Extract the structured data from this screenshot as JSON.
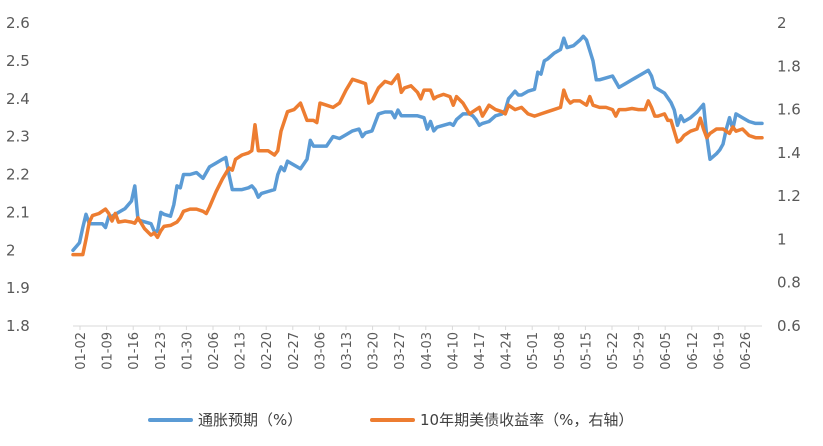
{
  "chart_data": {
    "type": "line",
    "title": "",
    "xlabel": "",
    "ylabel": "",
    "x_tick_labels": [
      "01-02",
      "01-09",
      "01-16",
      "01-23",
      "01-30",
      "02-06",
      "02-13",
      "02-20",
      "02-27",
      "03-06",
      "03-13",
      "03-20",
      "03-27",
      "04-03",
      "04-10",
      "04-17",
      "04-24",
      "05-01",
      "05-08",
      "05-15",
      "05-22",
      "05-29",
      "06-05",
      "06-12",
      "06-19",
      "06-26"
    ],
    "y_left": {
      "min": 1.8,
      "max": 2.6,
      "ticks": [
        "1.8",
        "1.9",
        "2",
        "2.1",
        "2.2",
        "2.3",
        "2.4",
        "2.5",
        "2.6"
      ]
    },
    "y_right": {
      "min": 0.6,
      "max": 2.0,
      "ticks": [
        "0.6",
        "0.8",
        "1",
        "1.2",
        "1.4",
        "1.6",
        "1.8",
        "2"
      ]
    },
    "legend_position": "bottom",
    "series": [
      {
        "name": "通胀预期（%）",
        "axis": "left",
        "color": "#5B9BD5",
        "points": [
          [
            0,
            2.0
          ],
          [
            0.5,
            2.01
          ],
          [
            1,
            2.02
          ],
          [
            1.5,
            2.06
          ],
          [
            2,
            2.095
          ],
          [
            2.5,
            2.07
          ],
          [
            3,
            2.07
          ],
          [
            3.5,
            2.07
          ],
          [
            4,
            2.07
          ],
          [
            4.5,
            2.07
          ],
          [
            5,
            2.06
          ],
          [
            5.5,
            2.09
          ],
          [
            6,
            2.09
          ],
          [
            7,
            2.1
          ],
          [
            8,
            2.11
          ],
          [
            9,
            2.13
          ],
          [
            9.5,
            2.17
          ],
          [
            10,
            2.08
          ],
          [
            11,
            2.075
          ],
          [
            12,
            2.07
          ],
          [
            12.5,
            2.05
          ],
          [
            13,
            2.05
          ],
          [
            13.5,
            2.1
          ],
          [
            14,
            2.095
          ],
          [
            15,
            2.09
          ],
          [
            15.5,
            2.12
          ],
          [
            16,
            2.17
          ],
          [
            16.5,
            2.165
          ],
          [
            17,
            2.2
          ],
          [
            18,
            2.2
          ],
          [
            19,
            2.205
          ],
          [
            20,
            2.19
          ],
          [
            21,
            2.22
          ],
          [
            22,
            2.23
          ],
          [
            23,
            2.24
          ],
          [
            23.5,
            2.245
          ],
          [
            24,
            2.2
          ],
          [
            24.5,
            2.16
          ],
          [
            25,
            2.16
          ],
          [
            26,
            2.16
          ],
          [
            27,
            2.165
          ],
          [
            27.5,
            2.17
          ],
          [
            28,
            2.16
          ],
          [
            28.5,
            2.14
          ],
          [
            29,
            2.15
          ],
          [
            30,
            2.155
          ],
          [
            31,
            2.16
          ],
          [
            31.5,
            2.2
          ],
          [
            32,
            2.22
          ],
          [
            32.5,
            2.21
          ],
          [
            33,
            2.235
          ],
          [
            34,
            2.225
          ],
          [
            35,
            2.215
          ],
          [
            36,
            2.24
          ],
          [
            36.5,
            2.29
          ],
          [
            37,
            2.275
          ],
          [
            38,
            2.275
          ],
          [
            39,
            2.275
          ],
          [
            40,
            2.3
          ],
          [
            41,
            2.295
          ],
          [
            42,
            2.305
          ],
          [
            43,
            2.315
          ],
          [
            44,
            2.32
          ],
          [
            44.5,
            2.3
          ],
          [
            45,
            2.31
          ],
          [
            46,
            2.315
          ],
          [
            47,
            2.36
          ],
          [
            48,
            2.365
          ],
          [
            49,
            2.365
          ],
          [
            49.5,
            2.35
          ],
          [
            50,
            2.37
          ],
          [
            50.5,
            2.355
          ],
          [
            51,
            2.355
          ],
          [
            52,
            2.355
          ],
          [
            53,
            2.355
          ],
          [
            54,
            2.35
          ],
          [
            54.5,
            2.32
          ],
          [
            55,
            2.34
          ],
          [
            55.5,
            2.315
          ],
          [
            56,
            2.325
          ],
          [
            57,
            2.33
          ],
          [
            58,
            2.335
          ],
          [
            58.5,
            2.33
          ],
          [
            59,
            2.345
          ],
          [
            60,
            2.36
          ],
          [
            61,
            2.36
          ],
          [
            61.5,
            2.355
          ],
          [
            62,
            2.345
          ],
          [
            62.5,
            2.33
          ],
          [
            63,
            2.335
          ],
          [
            64,
            2.34
          ],
          [
            65,
            2.355
          ],
          [
            66,
            2.36
          ],
          [
            66.5,
            2.37
          ],
          [
            67,
            2.4
          ],
          [
            67.5,
            2.41
          ],
          [
            68,
            2.42
          ],
          [
            68.5,
            2.41
          ],
          [
            69,
            2.41
          ],
          [
            70,
            2.42
          ],
          [
            71,
            2.425
          ],
          [
            71.5,
            2.47
          ],
          [
            72,
            2.465
          ],
          [
            72.5,
            2.5
          ],
          [
            73,
            2.505
          ],
          [
            74,
            2.52
          ],
          [
            75,
            2.53
          ],
          [
            75.5,
            2.56
          ],
          [
            76,
            2.535
          ],
          [
            77,
            2.54
          ],
          [
            78,
            2.555
          ],
          [
            78.5,
            2.565
          ],
          [
            79,
            2.555
          ],
          [
            80,
            2.5
          ],
          [
            80.5,
            2.45
          ],
          [
            81,
            2.45
          ],
          [
            82,
            2.455
          ],
          [
            83,
            2.46
          ],
          [
            83.5,
            2.445
          ],
          [
            84,
            2.43
          ],
          [
            85,
            2.44
          ],
          [
            86,
            2.45
          ],
          [
            87,
            2.46
          ],
          [
            88,
            2.47
          ],
          [
            88.5,
            2.475
          ],
          [
            89,
            2.46
          ],
          [
            89.5,
            2.43
          ],
          [
            90,
            2.425
          ],
          [
            91,
            2.415
          ],
          [
            92,
            2.39
          ],
          [
            92.5,
            2.37
          ],
          [
            93,
            2.33
          ],
          [
            93.5,
            2.355
          ],
          [
            94,
            2.34
          ],
          [
            95,
            2.35
          ],
          [
            96,
            2.365
          ],
          [
            97,
            2.385
          ],
          [
            97.5,
            2.3
          ],
          [
            98,
            2.24
          ],
          [
            99,
            2.255
          ],
          [
            99.5,
            2.265
          ],
          [
            100,
            2.28
          ],
          [
            100.5,
            2.32
          ],
          [
            101,
            2.35
          ],
          [
            101.5,
            2.32
          ],
          [
            102,
            2.36
          ],
          [
            103,
            2.35
          ],
          [
            104,
            2.34
          ],
          [
            105,
            2.335
          ],
          [
            106,
            2.335
          ]
        ]
      },
      {
        "name": "10年期美债收益率（%，右轴）",
        "axis": "right",
        "color": "#ED7D31",
        "points": [
          [
            0,
            0.93
          ],
          [
            1,
            0.93
          ],
          [
            1.5,
            0.93
          ],
          [
            2,
            1.0
          ],
          [
            2.5,
            1.08
          ],
          [
            3,
            1.11
          ],
          [
            4,
            1.12
          ],
          [
            5,
            1.14
          ],
          [
            5.5,
            1.12
          ],
          [
            6,
            1.085
          ],
          [
            6.5,
            1.12
          ],
          [
            7,
            1.08
          ],
          [
            8,
            1.085
          ],
          [
            9,
            1.08
          ],
          [
            9.5,
            1.075
          ],
          [
            10,
            1.1
          ],
          [
            11,
            1.05
          ],
          [
            12,
            1.02
          ],
          [
            12.5,
            1.03
          ],
          [
            13,
            1.01
          ],
          [
            13.5,
            1.04
          ],
          [
            14,
            1.06
          ],
          [
            15,
            1.065
          ],
          [
            16,
            1.08
          ],
          [
            16.5,
            1.1
          ],
          [
            17,
            1.13
          ],
          [
            18,
            1.14
          ],
          [
            19,
            1.14
          ],
          [
            20,
            1.13
          ],
          [
            20.5,
            1.12
          ],
          [
            21,
            1.15
          ],
          [
            22,
            1.22
          ],
          [
            23,
            1.28
          ],
          [
            24,
            1.33
          ],
          [
            24.5,
            1.32
          ],
          [
            25,
            1.37
          ],
          [
            26,
            1.39
          ],
          [
            27,
            1.4
          ],
          [
            27.5,
            1.41
          ],
          [
            28,
            1.53
          ],
          [
            28.5,
            1.41
          ],
          [
            29,
            1.41
          ],
          [
            30,
            1.41
          ],
          [
            31,
            1.39
          ],
          [
            31.5,
            1.41
          ],
          [
            32,
            1.5
          ],
          [
            33,
            1.59
          ],
          [
            34,
            1.6
          ],
          [
            35,
            1.63
          ],
          [
            36,
            1.55
          ],
          [
            37,
            1.55
          ],
          [
            37.5,
            1.54
          ],
          [
            38,
            1.63
          ],
          [
            39,
            1.62
          ],
          [
            40,
            1.61
          ],
          [
            41,
            1.63
          ],
          [
            42,
            1.69
          ],
          [
            43,
            1.74
          ],
          [
            44,
            1.73
          ],
          [
            45,
            1.72
          ],
          [
            45.5,
            1.63
          ],
          [
            46,
            1.64
          ],
          [
            47,
            1.7
          ],
          [
            48,
            1.73
          ],
          [
            49,
            1.72
          ],
          [
            50,
            1.76
          ],
          [
            50.5,
            1.68
          ],
          [
            51,
            1.7
          ],
          [
            52,
            1.71
          ],
          [
            53,
            1.68
          ],
          [
            53.5,
            1.65
          ],
          [
            54,
            1.69
          ],
          [
            55,
            1.69
          ],
          [
            55.5,
            1.65
          ],
          [
            56,
            1.66
          ],
          [
            57,
            1.67
          ],
          [
            58,
            1.66
          ],
          [
            58.5,
            1.62
          ],
          [
            59,
            1.66
          ],
          [
            60,
            1.63
          ],
          [
            61,
            1.58
          ],
          [
            62,
            1.6
          ],
          [
            62.5,
            1.61
          ],
          [
            63,
            1.57
          ],
          [
            64,
            1.62
          ],
          [
            65,
            1.6
          ],
          [
            66,
            1.59
          ],
          [
            66.5,
            1.58
          ],
          [
            67,
            1.62
          ],
          [
            68,
            1.6
          ],
          [
            69,
            1.61
          ],
          [
            70,
            1.58
          ],
          [
            71,
            1.57
          ],
          [
            72,
            1.58
          ],
          [
            73,
            1.59
          ],
          [
            74,
            1.6
          ],
          [
            75,
            1.61
          ],
          [
            75.5,
            1.69
          ],
          [
            76,
            1.65
          ],
          [
            76.5,
            1.63
          ],
          [
            77,
            1.64
          ],
          [
            78,
            1.64
          ],
          [
            79,
            1.62
          ],
          [
            79.5,
            1.66
          ],
          [
            80,
            1.62
          ],
          [
            81,
            1.61
          ],
          [
            82,
            1.61
          ],
          [
            83,
            1.6
          ],
          [
            83.5,
            1.57
          ],
          [
            84,
            1.6
          ],
          [
            85,
            1.6
          ],
          [
            86,
            1.605
          ],
          [
            87,
            1.6
          ],
          [
            88,
            1.6
          ],
          [
            88.5,
            1.64
          ],
          [
            89,
            1.61
          ],
          [
            89.5,
            1.57
          ],
          [
            90,
            1.57
          ],
          [
            91,
            1.58
          ],
          [
            91.5,
            1.55
          ],
          [
            92,
            1.55
          ],
          [
            93,
            1.45
          ],
          [
            93.5,
            1.46
          ],
          [
            94,
            1.48
          ],
          [
            95,
            1.5
          ],
          [
            96,
            1.51
          ],
          [
            96.5,
            1.56
          ],
          [
            97,
            1.51
          ],
          [
            97.5,
            1.47
          ],
          [
            98,
            1.49
          ],
          [
            99,
            1.51
          ],
          [
            100,
            1.51
          ],
          [
            101,
            1.49
          ],
          [
            101.5,
            1.52
          ],
          [
            102,
            1.5
          ],
          [
            103,
            1.51
          ],
          [
            104,
            1.48
          ],
          [
            105,
            1.47
          ],
          [
            106,
            1.47
          ]
        ]
      }
    ]
  }
}
